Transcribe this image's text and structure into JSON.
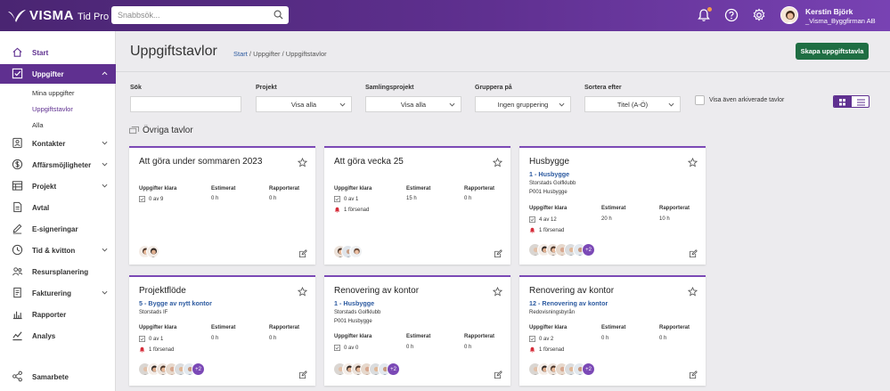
{
  "app": {
    "brand": "VISMA",
    "product": "Tid Pro",
    "search_placeholder": "Snabbsök...",
    "notif_color": "#f2994a",
    "accent": "#5f3090"
  },
  "user": {
    "name": "Kerstin Björk",
    "company": "_Visma_Byggfirman AB"
  },
  "sidebar": {
    "items": [
      {
        "label": "Start",
        "icon": "home-icon"
      },
      {
        "label": "Uppgifter",
        "icon": "checkbox-icon"
      },
      {
        "label": "Kontakter",
        "icon": "contacts-icon"
      },
      {
        "label": "Affärsmöjligheter",
        "icon": "money-icon"
      },
      {
        "label": "Projekt",
        "icon": "table-icon"
      },
      {
        "label": "Avtal",
        "icon": "contract-icon"
      },
      {
        "label": "E-signeringar",
        "icon": "pen-icon"
      },
      {
        "label": "Tid & kvitton",
        "icon": "clock-icon"
      },
      {
        "label": "Resursplanering",
        "icon": "people-icon"
      },
      {
        "label": "Fakturering",
        "icon": "invoice-icon"
      },
      {
        "label": "Rapporter",
        "icon": "bar-chart-icon"
      },
      {
        "label": "Analys",
        "icon": "line-chart-icon"
      },
      {
        "label": "Samarbete",
        "icon": "share-icon"
      }
    ],
    "subitems": [
      "Mina uppgifter",
      "Uppgiftstavlor",
      "Alla"
    ]
  },
  "header": {
    "title": "Uppgiftstavlor",
    "crumb_start": "Start",
    "crumb_rest": " / Uppgifter / Uppgiftstavlor",
    "create_label": "Skapa uppgiftstavla"
  },
  "filters": {
    "search_label": "Sök",
    "project_label": "Projekt",
    "project_value": "Visa alla",
    "collection_label": "Samlingsprojekt",
    "collection_value": "Visa alla",
    "group_label": "Gruppera på",
    "group_value": "Ingen gruppering",
    "sort_label": "Sortera efter",
    "sort_value": "Titel (A-Ö)",
    "archived_label": "Visa även arkiverade tavlor"
  },
  "section_title": "Övriga tavlor",
  "stats_headers": {
    "done": "Uppgifter klara",
    "est": "Estimerat",
    "rep": "Rapporterat"
  },
  "cards": [
    {
      "title": "Att göra under sommaren 2023",
      "project": "",
      "meta1": "",
      "meta2": "",
      "done": "0 av 9",
      "est": "0 h",
      "rep": "0 h",
      "late": "",
      "more": ""
    },
    {
      "title": "Att göra vecka 25",
      "project": "",
      "meta1": "",
      "meta2": "",
      "done": "0 av 1",
      "est": "15 h",
      "rep": "0 h",
      "late": "1 försenad",
      "more": ""
    },
    {
      "title": "Husbygge",
      "project": "1 - Husbygge",
      "meta1": "Storstads Golfklubb",
      "meta2": "P001 Husbygge",
      "done": "4 av 12",
      "est": "20 h",
      "rep": "10 h",
      "late": "1 försenad",
      "more": "+2"
    },
    {
      "title": "Projektflöde",
      "project": "5 - Bygge av nytt kontor",
      "meta1": "Storstads IF",
      "meta2": "",
      "done": "0 av 1",
      "est": "0 h",
      "rep": "0 h",
      "late": "1 försenad",
      "more": "+2"
    },
    {
      "title": "Renovering av kontor",
      "project": "1 - Husbygge",
      "meta1": "Storstads Golfklubb",
      "meta2": "P001 Husbygge",
      "done": "0 av 0",
      "est": "0 h",
      "rep": "0 h",
      "late": "",
      "more": "+2"
    },
    {
      "title": "Renovering av kontor",
      "project": "12 - Renovering av kontor",
      "meta1": "Redovisningsbyrån",
      "meta2": "",
      "done": "0 av 2",
      "est": "0 h",
      "rep": "0 h",
      "late": "1 försenad",
      "more": "+2"
    }
  ]
}
